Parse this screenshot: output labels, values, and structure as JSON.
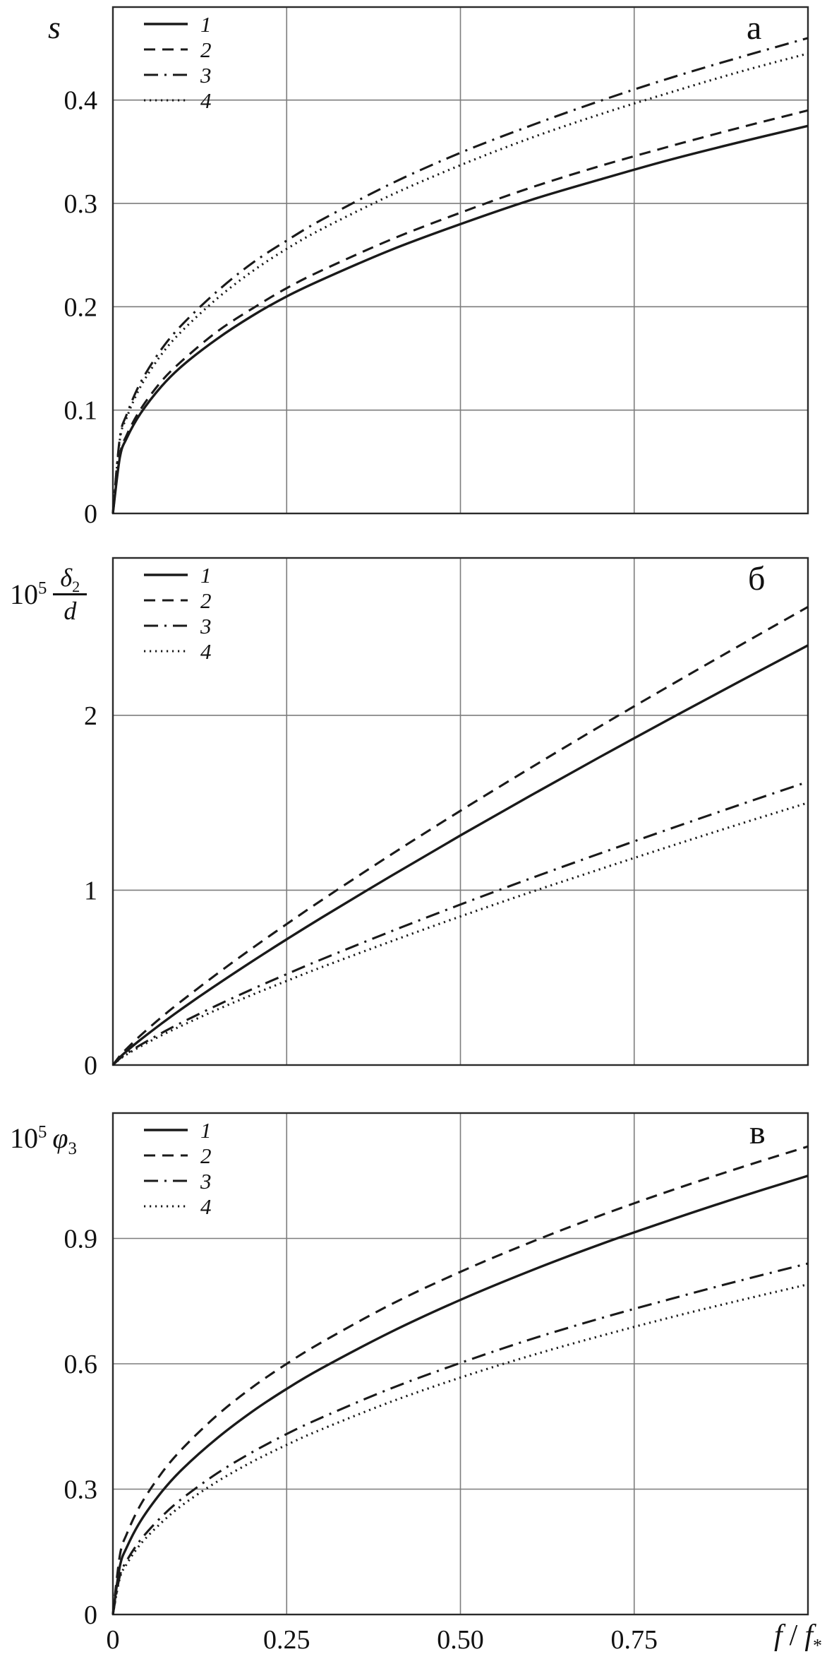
{
  "figure": {
    "background": "#ffffff",
    "curve_color": "#1a1a1a",
    "grid_color": "#7d7d7d",
    "border_color": "#2b2b2b",
    "x_axis": {
      "label_f": "f",
      "label_sep": "/",
      "label_sub": "*",
      "range": [
        0,
        1
      ],
      "ticks": [
        {
          "value": 0,
          "label": "0"
        },
        {
          "value": 0.25,
          "label": "0.25"
        },
        {
          "value": 0.5,
          "label": "0.50"
        },
        {
          "value": 0.75,
          "label": "0.75"
        }
      ]
    }
  },
  "chart_data": [
    {
      "type": "line",
      "panel_label": "а",
      "y_label": "s",
      "xlim": [
        0,
        1
      ],
      "ylim": [
        0,
        0.49
      ],
      "grid": true,
      "legend_position": "top-left",
      "y_ticks": [
        {
          "value": 0.4,
          "label": "0.4"
        },
        {
          "value": 0.3,
          "label": "0.3"
        },
        {
          "value": 0.2,
          "label": "0.2"
        },
        {
          "value": 0.1,
          "label": "0.1"
        },
        {
          "value": 0,
          "label": "0"
        }
      ],
      "x": [
        0,
        0.01,
        0.02,
        0.04,
        0.07,
        0.1,
        0.15,
        0.2,
        0.25,
        0.3,
        0.4,
        0.5,
        0.6,
        0.7,
        0.8,
        0.9,
        1
      ],
      "series": [
        {
          "name": "1",
          "style": "solid",
          "y": [
            0,
            0.054,
            0.073,
            0.097,
            0.123,
            0.143,
            0.169,
            0.191,
            0.21,
            0.226,
            0.255,
            0.28,
            0.303,
            0.323,
            0.342,
            0.359,
            0.375
          ]
        },
        {
          "name": "2",
          "style": "dashed",
          "y": [
            0,
            0.056,
            0.076,
            0.101,
            0.128,
            0.148,
            0.176,
            0.198,
            0.218,
            0.235,
            0.265,
            0.291,
            0.315,
            0.336,
            0.355,
            0.373,
            0.39
          ]
        },
        {
          "name": "3",
          "style": "dashdot",
          "y": [
            0,
            0.073,
            0.096,
            0.127,
            0.159,
            0.183,
            0.215,
            0.242,
            0.264,
            0.284,
            0.319,
            0.349,
            0.375,
            0.399,
            0.421,
            0.441,
            0.46
          ]
        },
        {
          "name": "4",
          "style": "dotted",
          "y": [
            0,
            0.071,
            0.093,
            0.123,
            0.154,
            0.177,
            0.208,
            0.234,
            0.256,
            0.275,
            0.308,
            0.337,
            0.363,
            0.386,
            0.407,
            0.427,
            0.445
          ]
        }
      ]
    },
    {
      "type": "line",
      "panel_label": "б",
      "y_label": "10^5 δ2/d",
      "y_label_factor": "10",
      "y_label_exponent": "5",
      "y_label_numerator": "δ",
      "y_label_numerator_sub": "2",
      "y_label_denominator": "d",
      "xlim": [
        0,
        1
      ],
      "ylim": [
        0,
        2.9
      ],
      "grid": true,
      "legend_position": "top-left",
      "y_ticks": [
        {
          "value": 2,
          "label": "2"
        },
        {
          "value": 1,
          "label": "1"
        },
        {
          "value": 0,
          "label": "0"
        }
      ],
      "x": [
        0,
        0.01,
        0.02,
        0.04,
        0.07,
        0.1,
        0.15,
        0.2,
        0.25,
        0.3,
        0.4,
        0.5,
        0.6,
        0.7,
        0.8,
        0.9,
        1
      ],
      "series": [
        {
          "name": "1",
          "style": "solid",
          "y": [
            0,
            0.044,
            0.08,
            0.146,
            0.237,
            0.324,
            0.461,
            0.592,
            0.719,
            0.842,
            1.081,
            1.313,
            1.539,
            1.76,
            1.977,
            2.19,
            2.4
          ]
        },
        {
          "name": "2",
          "style": "dashed",
          "y": [
            0,
            0.052,
            0.094,
            0.17,
            0.274,
            0.37,
            0.522,
            0.667,
            0.806,
            0.942,
            1.203,
            1.454,
            1.697,
            1.935,
            2.167,
            2.395,
            2.62
          ]
        },
        {
          "name": "3",
          "style": "dashdot",
          "y": [
            0,
            0.037,
            0.066,
            0.116,
            0.183,
            0.245,
            0.342,
            0.433,
            0.52,
            0.604,
            0.764,
            0.918,
            1.066,
            1.209,
            1.349,
            1.486,
            1.62
          ]
        },
        {
          "name": "4",
          "style": "dotted",
          "y": [
            0,
            0.034,
            0.061,
            0.107,
            0.17,
            0.227,
            0.317,
            0.401,
            0.481,
            0.559,
            0.707,
            0.85,
            0.987,
            1.119,
            1.249,
            1.376,
            1.5
          ]
        }
      ]
    },
    {
      "type": "line",
      "panel_label": "в",
      "y_label": "10^5 φ3",
      "y_label_factor": "10",
      "y_label_exponent": "5",
      "y_label_symbol": "φ",
      "y_label_symbol_sub": "3",
      "xlim": [
        0,
        1
      ],
      "ylim": [
        0,
        1.2
      ],
      "grid": true,
      "legend_position": "top-left",
      "y_ticks": [
        {
          "value": 0.9,
          "label": "0.9"
        },
        {
          "value": 0.6,
          "label": "0.6"
        },
        {
          "value": 0.3,
          "label": "0.3"
        },
        {
          "value": 0,
          "label": "0"
        }
      ],
      "x": [
        0,
        0.01,
        0.02,
        0.04,
        0.07,
        0.1,
        0.15,
        0.2,
        0.25,
        0.3,
        0.4,
        0.5,
        0.6,
        0.7,
        0.8,
        0.9,
        1
      ],
      "series": [
        {
          "name": "1",
          "style": "solid",
          "y": [
            0,
            0.115,
            0.161,
            0.224,
            0.293,
            0.348,
            0.422,
            0.485,
            0.54,
            0.589,
            0.676,
            0.753,
            0.822,
            0.885,
            0.943,
            0.998,
            1.05
          ]
        },
        {
          "name": "2",
          "style": "dashed",
          "y": [
            0,
            0.141,
            0.193,
            0.263,
            0.338,
            0.397,
            0.477,
            0.543,
            0.6,
            0.651,
            0.742,
            0.82,
            0.89,
            0.954,
            1.013,
            1.068,
            1.12
          ]
        },
        {
          "name": "3",
          "style": "dashdot",
          "y": [
            0,
            0.092,
            0.129,
            0.179,
            0.234,
            0.278,
            0.338,
            0.388,
            0.432,
            0.471,
            0.541,
            0.602,
            0.658,
            0.708,
            0.754,
            0.798,
            0.84
          ]
        },
        {
          "name": "4",
          "style": "dotted",
          "y": [
            0,
            0.087,
            0.121,
            0.169,
            0.22,
            0.262,
            0.318,
            0.365,
            0.406,
            0.443,
            0.509,
            0.567,
            0.619,
            0.666,
            0.71,
            0.751,
            0.79
          ]
        }
      ]
    }
  ]
}
